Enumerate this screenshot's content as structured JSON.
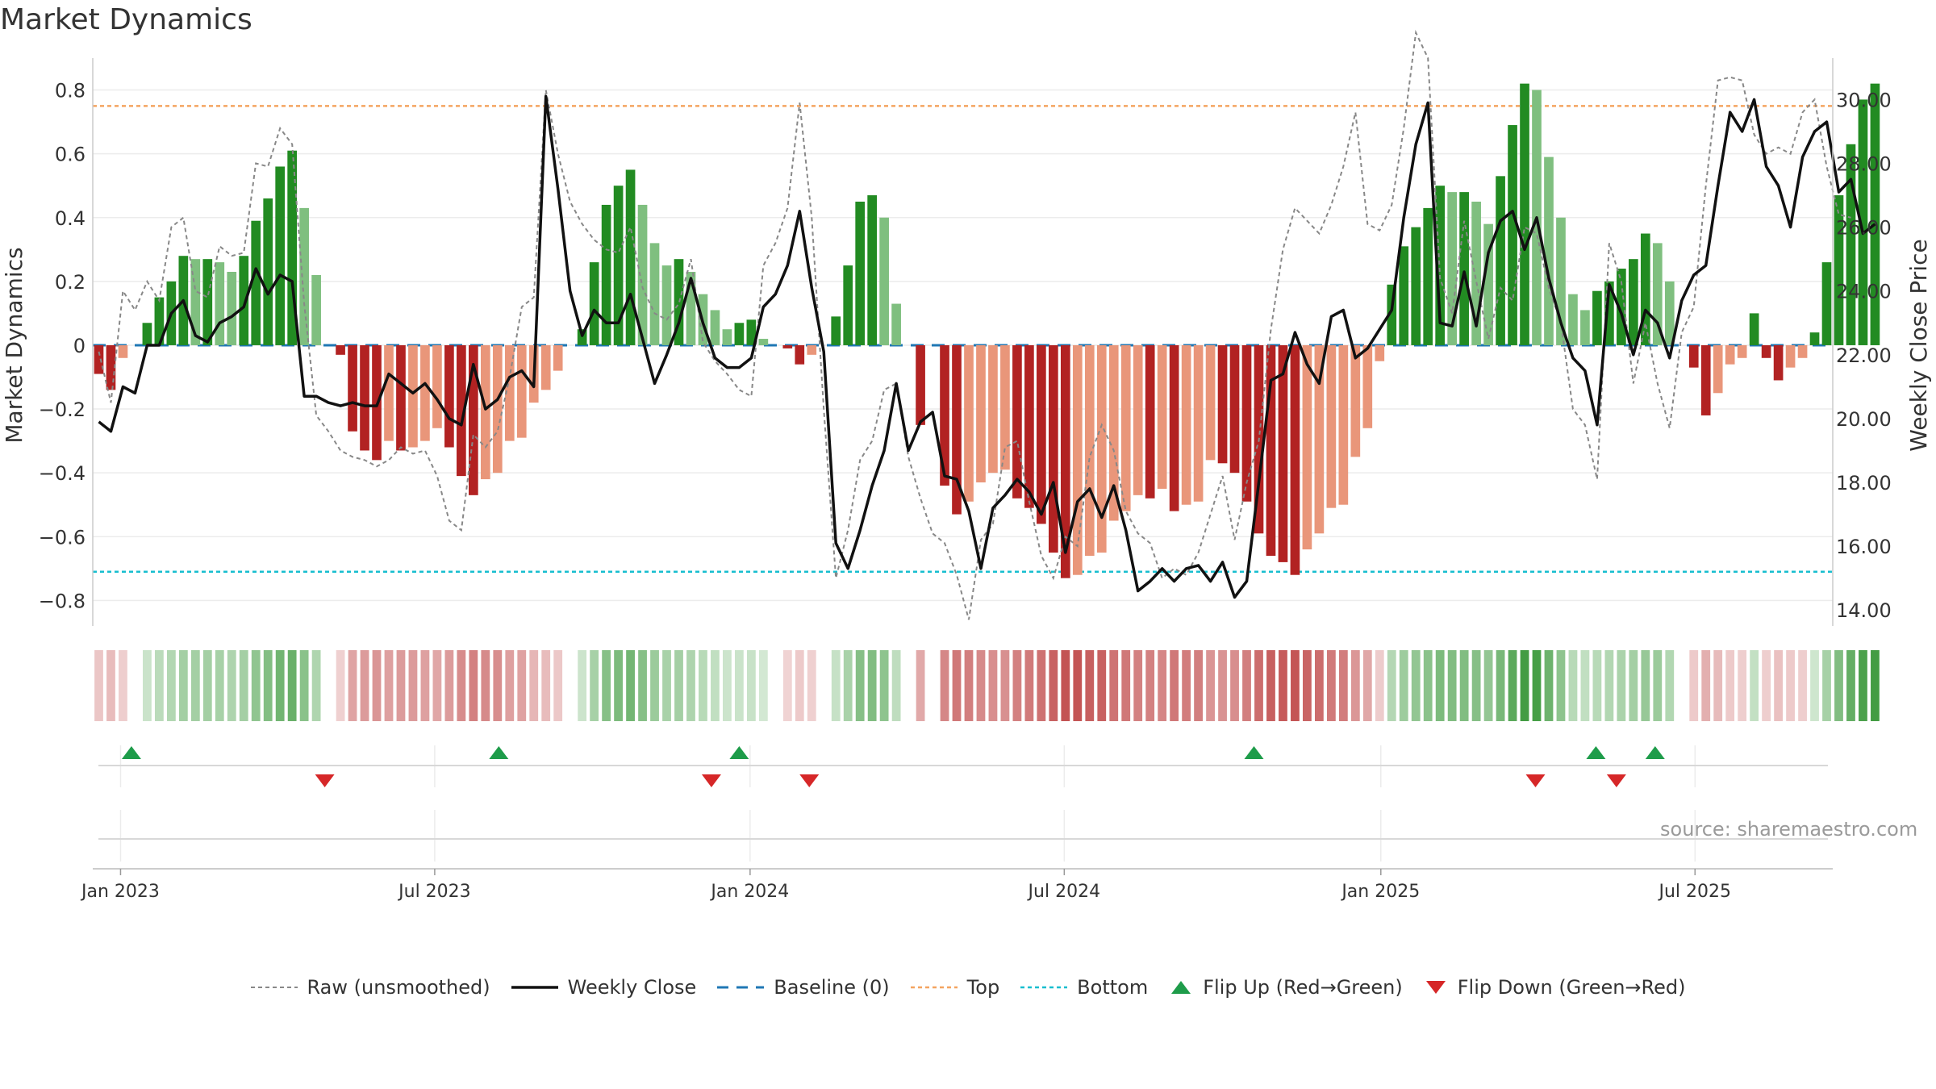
{
  "title": "Market Dynamics",
  "source_text": "source: sharemaestro.com",
  "colors": {
    "strong_green": "#228b22",
    "light_green": "#7fbf7f",
    "strong_red": "#b22222",
    "light_red": "#e9967a",
    "close_line": "#111111",
    "raw_line": "#888888",
    "baseline": "#1f77b4",
    "top": "#f4a460",
    "bottom": "#17becf",
    "flip_up": "#1e9c4a",
    "flip_down": "#d62728"
  },
  "chart_data": {
    "type": "bar",
    "title": "Market Dynamics",
    "ylabel": "Market Dynamics",
    "y2label": "Weekly Close Price",
    "ylim": [
      -0.88,
      0.9
    ],
    "y2lim": [
      13.5,
      31.3
    ],
    "y_ticks": [
      "0.8",
      "0.6",
      "0.4",
      "0.2",
      "0",
      "−0.2",
      "−0.4",
      "−0.6",
      "−0.8"
    ],
    "y2_ticks": [
      "30.00",
      "28.00",
      "26.00",
      "24.00",
      "22.00",
      "20.00",
      "18.00",
      "16.00",
      "14.00"
    ],
    "x_ticks": [
      "Jan 2023",
      "Jul 2023",
      "Jan 2024",
      "Jul 2024",
      "Jan 2025",
      "Jul 2025"
    ],
    "x_tick_weeks": [
      2.3,
      28.3,
      54.4,
      80.4,
      106.6,
      132.6
    ],
    "n_weeks": 144,
    "reference_lines": {
      "baseline": 0,
      "top": 0.75,
      "bottom": -0.71
    },
    "grid": true,
    "legend_position": "bottom-center",
    "series": [
      {
        "name": "Market Dynamics",
        "values": [
          -0.09,
          -0.14,
          -0.04,
          0.0,
          0.07,
          0.15,
          0.2,
          0.28,
          0.27,
          0.27,
          0.26,
          0.23,
          0.28,
          0.39,
          0.46,
          0.56,
          0.61,
          0.43,
          0.22,
          0.0,
          -0.03,
          -0.27,
          -0.33,
          -0.36,
          -0.3,
          -0.33,
          -0.32,
          -0.3,
          -0.26,
          -0.32,
          -0.41,
          -0.47,
          -0.42,
          -0.4,
          -0.3,
          -0.29,
          -0.18,
          -0.14,
          -0.08,
          0.0,
          0.05,
          0.26,
          0.44,
          0.5,
          0.55,
          0.44,
          0.32,
          0.25,
          0.27,
          0.23,
          0.16,
          0.11,
          0.05,
          0.07,
          0.08,
          0.02,
          0.0,
          -0.01,
          -0.06,
          -0.03,
          0.0,
          0.09,
          0.25,
          0.45,
          0.47,
          0.4,
          0.13,
          0.0,
          -0.25,
          0.0,
          -0.44,
          -0.53,
          -0.49,
          -0.43,
          -0.4,
          -0.39,
          -0.48,
          -0.51,
          -0.56,
          -0.65,
          -0.73,
          -0.72,
          -0.66,
          -0.65,
          -0.55,
          -0.52,
          -0.47,
          -0.48,
          -0.45,
          -0.52,
          -0.5,
          -0.49,
          -0.36,
          -0.37,
          -0.4,
          -0.49,
          -0.59,
          -0.66,
          -0.68,
          -0.72,
          -0.64,
          -0.59,
          -0.51,
          -0.5,
          -0.35,
          -0.26,
          -0.05,
          0.19,
          0.31,
          0.37,
          0.43,
          0.5,
          0.48,
          0.48,
          0.45,
          0.38,
          0.53,
          0.69,
          0.82,
          0.8,
          0.59,
          0.4,
          0.16,
          0.11,
          0.17,
          0.2,
          0.24,
          0.27,
          0.35,
          0.32,
          0.2,
          0.0,
          -0.07,
          -0.22,
          -0.15,
          -0.06,
          -0.04,
          0.1,
          -0.04,
          -0.11,
          -0.07,
          -0.04,
          0.04,
          0.26,
          0.47,
          0.63,
          0.77,
          0.82
        ]
      },
      {
        "name": "Weekly Close",
        "values": [
          19.9,
          19.6,
          21.0,
          20.8,
          22.3,
          22.3,
          23.3,
          23.7,
          22.6,
          22.4,
          23.0,
          23.2,
          23.5,
          24.7,
          23.9,
          24.5,
          24.3,
          20.7,
          20.7,
          20.5,
          20.4,
          20.5,
          20.4,
          20.4,
          21.4,
          21.1,
          20.8,
          21.1,
          20.6,
          20.0,
          19.8,
          21.7,
          20.3,
          20.6,
          21.3,
          21.5,
          21.0,
          30.1,
          27.2,
          24.0,
          22.6,
          23.4,
          23.0,
          23.0,
          23.9,
          22.5,
          21.1,
          22.0,
          23.0,
          24.4,
          23.0,
          21.9,
          21.6,
          21.6,
          21.9,
          23.5,
          23.9,
          24.8,
          26.5,
          24.1,
          22.1,
          16.1,
          15.3,
          16.5,
          17.9,
          19.0,
          21.1,
          19.0,
          19.9,
          20.2,
          18.2,
          18.1,
          17.1,
          15.3,
          17.2,
          17.6,
          18.1,
          17.7,
          17.0,
          18.0,
          15.8,
          17.4,
          17.8,
          16.9,
          17.9,
          16.5,
          14.6,
          14.9,
          15.3,
          14.9,
          15.3,
          15.4,
          14.9,
          15.5,
          14.4,
          14.9,
          18.0,
          21.2,
          21.4,
          22.7,
          21.7,
          21.1,
          23.2,
          23.4,
          21.9,
          22.2,
          22.8,
          23.4,
          26.3,
          28.6,
          29.9,
          23.0,
          22.9,
          24.6,
          22.9,
          25.2,
          26.2,
          26.5,
          25.3,
          26.3,
          24.4,
          23.0,
          21.9,
          21.5,
          19.8,
          24.2,
          23.3,
          22.0,
          23.4,
          23.0,
          21.9,
          23.7,
          24.5,
          24.8,
          27.3,
          29.6,
          29.0,
          30.0,
          27.9,
          27.3,
          26.0,
          28.2,
          29.0,
          29.3,
          27.1,
          27.5,
          25.8,
          26.1
        ]
      },
      {
        "name": "Raw (unsmoothed)",
        "values": [
          -0.02,
          -0.18,
          0.17,
          0.11,
          0.2,
          0.14,
          0.37,
          0.4,
          0.17,
          0.15,
          0.31,
          0.28,
          0.29,
          0.57,
          0.56,
          0.68,
          0.63,
          0.13,
          -0.22,
          -0.27,
          -0.33,
          -0.35,
          -0.36,
          -0.38,
          -0.36,
          -0.32,
          -0.34,
          -0.33,
          -0.41,
          -0.55,
          -0.58,
          -0.28,
          -0.32,
          -0.27,
          -0.1,
          0.12,
          0.15,
          0.8,
          0.6,
          0.45,
          0.38,
          0.33,
          0.3,
          0.29,
          0.37,
          0.18,
          0.1,
          0.08,
          0.13,
          0.27,
          0.01,
          -0.05,
          -0.09,
          -0.14,
          -0.16,
          0.25,
          0.32,
          0.43,
          0.76,
          0.4,
          -0.2,
          -0.73,
          -0.58,
          -0.36,
          -0.3,
          -0.14,
          -0.12,
          -0.35,
          -0.48,
          -0.59,
          -0.62,
          -0.72,
          -0.86,
          -0.61,
          -0.56,
          -0.32,
          -0.3,
          -0.49,
          -0.66,
          -0.73,
          -0.6,
          -0.63,
          -0.35,
          -0.25,
          -0.33,
          -0.52,
          -0.59,
          -0.62,
          -0.73,
          -0.7,
          -0.72,
          -0.65,
          -0.53,
          -0.41,
          -0.61,
          -0.43,
          -0.3,
          0.05,
          0.3,
          0.43,
          0.39,
          0.35,
          0.44,
          0.56,
          0.73,
          0.38,
          0.36,
          0.44,
          0.68,
          0.98,
          0.9,
          0.21,
          0.1,
          0.39,
          0.2,
          0.02,
          0.18,
          0.14,
          0.37,
          0.35,
          0.18,
          0.07,
          -0.2,
          -0.25,
          -0.42,
          0.32,
          0.2,
          -0.12,
          0.07,
          -0.12,
          -0.26,
          0.04,
          0.12,
          0.5,
          0.83,
          0.84,
          0.83,
          0.66,
          0.6,
          0.62,
          0.6,
          0.73,
          0.77,
          0.56,
          0.41,
          0.4
        ]
      }
    ],
    "flips": {
      "up": {
        "name": "Flip Up (Red→Green)",
        "weeks": [
          3.2,
          33.6,
          53.5,
          96.1,
          124.4,
          129.3
        ]
      },
      "down": {
        "name": "Flip Down (Green→Red)",
        "weeks": [
          19.2,
          51.2,
          59.3,
          119.4,
          126.1
        ]
      }
    }
  },
  "legend": {
    "raw": "Raw (unsmoothed)",
    "close": "Weekly Close",
    "baseline": "Baseline (0)",
    "top": "Top",
    "bottom": "Bottom",
    "flip_up": "Flip Up (Red→Green)",
    "flip_down": "Flip Down (Green→Red)"
  }
}
